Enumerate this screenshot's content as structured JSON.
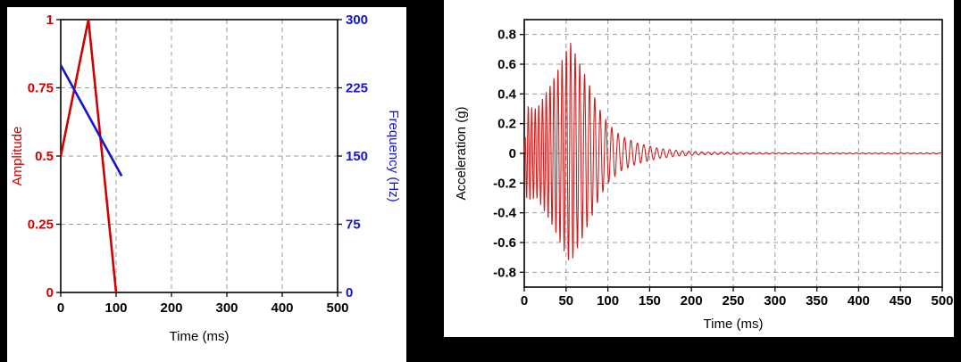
{
  "page": {
    "background_color": "#000000",
    "panel_background_color": "#ffffff"
  },
  "chart_data": [
    {
      "id": "excitation-input",
      "type": "line",
      "xlabel": "Time (ms)",
      "xlim": [
        0,
        500
      ],
      "x_ticks": [
        0,
        100,
        200,
        300,
        400,
        500
      ],
      "grid": "dashed",
      "legend": "none",
      "left_axis": {
        "label": "Amplitude",
        "color": "#d10000",
        "lim": [
          0,
          1
        ],
        "ticks": [
          0,
          0.25,
          0.5,
          0.75,
          1
        ]
      },
      "right_axis": {
        "label": "Frequency (Hz)",
        "color": "#1414d2",
        "lim": [
          0,
          300
        ],
        "ticks": [
          0,
          75,
          150,
          225,
          300
        ]
      },
      "series": [
        {
          "name": "amplitude-envelope",
          "axis": "left",
          "color": "#d10000",
          "points": [
            [
              0,
              0.5
            ],
            [
              50,
              1.0
            ],
            [
              100,
              0.0
            ]
          ]
        },
        {
          "name": "frequency-sweep",
          "axis": "right",
          "color": "#1414d2",
          "points": [
            [
              0,
              250
            ],
            [
              110,
              128
            ]
          ]
        }
      ]
    },
    {
      "id": "acceleration-response",
      "type": "line",
      "xlabel": "Time (ms)",
      "ylabel": "Acceleration (g)",
      "xlim": [
        0,
        500
      ],
      "x_ticks": [
        0,
        50,
        100,
        150,
        200,
        250,
        300,
        350,
        400,
        450,
        500
      ],
      "ylim": [
        -0.9,
        0.9
      ],
      "y_ticks": [
        -0.8,
        -0.6,
        -0.4,
        -0.2,
        0,
        0.2,
        0.4,
        0.6,
        0.8
      ],
      "grid": "dashed",
      "legend": "none",
      "series": [
        {
          "name": "acceleration",
          "color": "#cc2020",
          "waveform": {
            "kind": "swept-sine-burst",
            "t_start": 0,
            "t_end": 500,
            "dt": 0.25,
            "sweep": {
              "f0_hz": 250,
              "f1_hz": 130,
              "t1_ms": 110
            },
            "envelope": [
              [
                0,
                0.02
              ],
              [
                3,
                0.32
              ],
              [
                15,
                0.3
              ],
              [
                35,
                0.5
              ],
              [
                55,
                0.75
              ],
              [
                75,
                0.5
              ],
              [
                90,
                0.3
              ],
              [
                100,
                0.2
              ],
              [
                115,
                0.12
              ],
              [
                135,
                0.07
              ],
              [
                160,
                0.035
              ],
              [
                185,
                0.018
              ],
              [
                210,
                0.01
              ],
              [
                260,
                0.006
              ],
              [
                320,
                0.004
              ],
              [
                500,
                0.004
              ]
            ]
          }
        }
      ]
    }
  ]
}
